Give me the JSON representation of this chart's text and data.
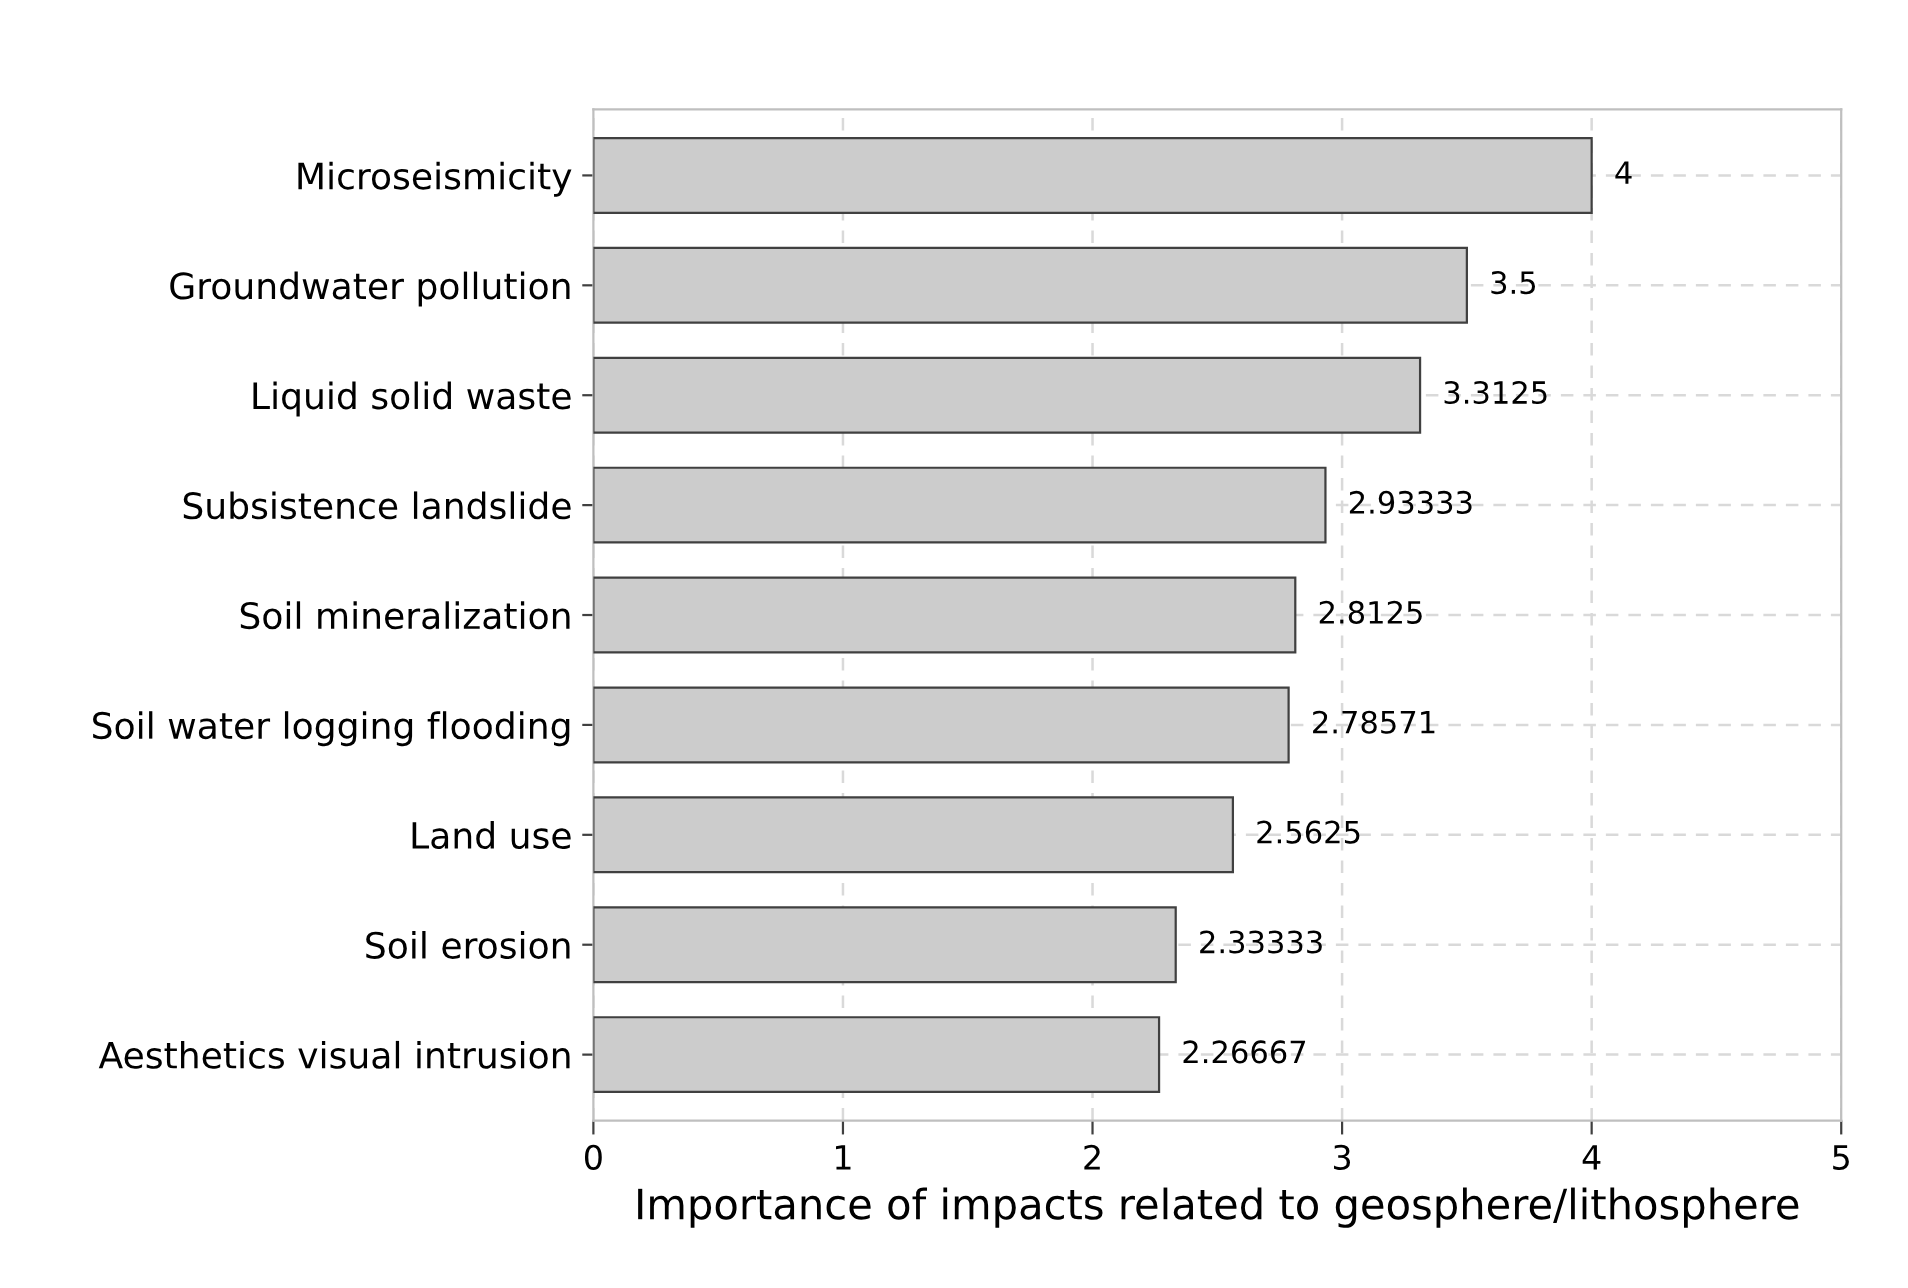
{
  "chart_data": {
    "type": "bar",
    "orientation": "horizontal",
    "xlabel": "Importance of impacts related to geosphere/lithosphere",
    "categories": [
      "Microseismicity",
      "Groundwater pollution",
      "Liquid solid waste",
      "Subsistence landslide",
      "Soil mineralization",
      "Soil water logging flooding",
      "Land use",
      "Soil erosion",
      "Aesthetics visual intrusion"
    ],
    "values": [
      4,
      3.5,
      3.3125,
      2.93333,
      2.8125,
      2.78571,
      2.5625,
      2.33333,
      2.26667
    ],
    "value_labels": [
      "4",
      "3.5",
      "3.3125",
      "2.93333",
      "2.8125",
      "2.78571",
      "2.5625",
      "2.33333",
      "2.26667"
    ],
    "color": "#cccccc",
    "xlim": [
      0,
      5
    ],
    "xticks": [
      0,
      1,
      2,
      3,
      4,
      5
    ],
    "grid": true
  }
}
